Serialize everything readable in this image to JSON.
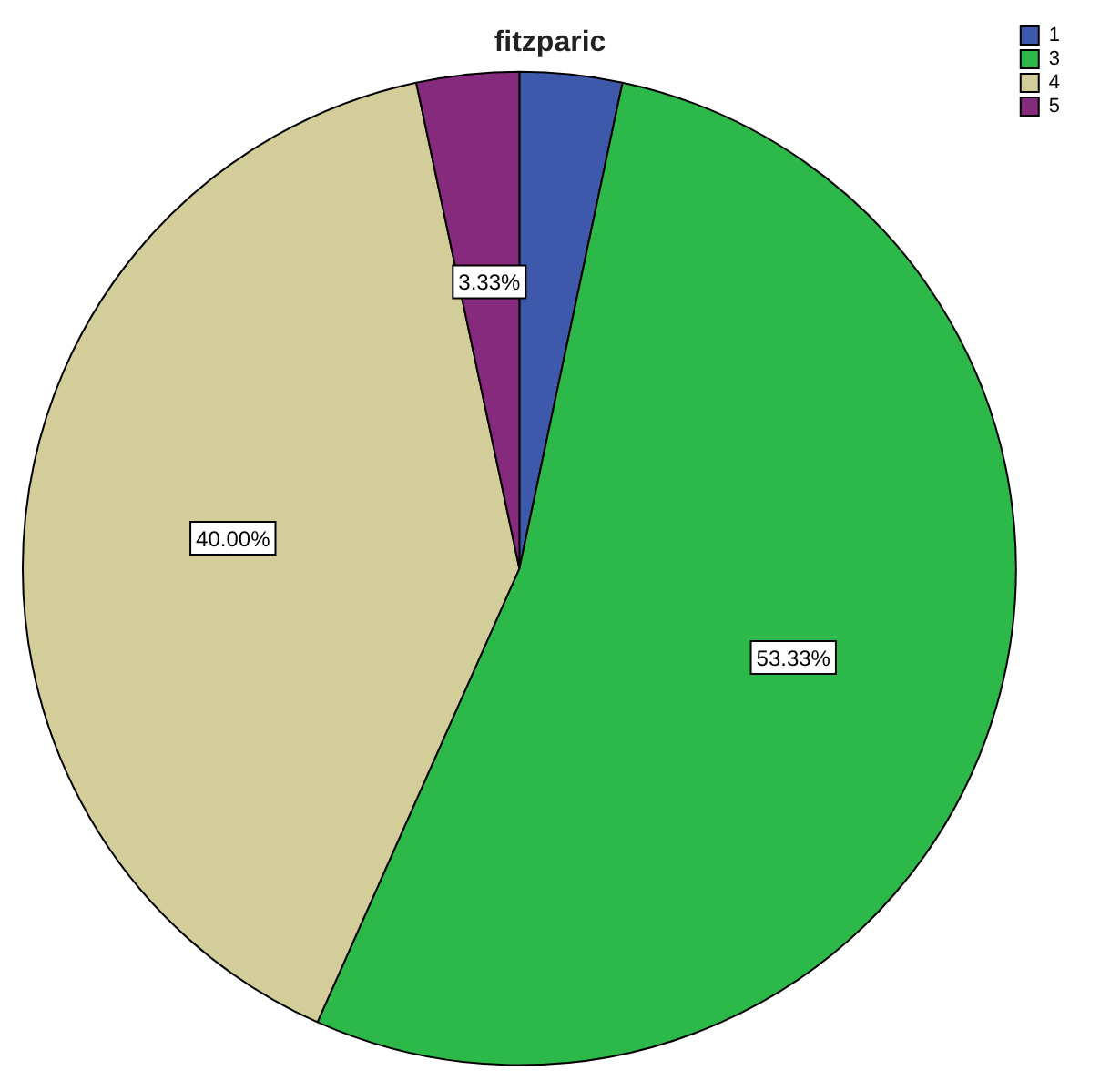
{
  "chart_data": {
    "type": "pie",
    "title": "fitzparic",
    "categories": [
      "1",
      "3",
      "4",
      "5"
    ],
    "values": [
      3.33,
      53.33,
      40.0,
      3.33
    ],
    "colors": [
      "#3e58ac",
      "#2db84a",
      "#d3cd99",
      "#862a7d"
    ],
    "value_labels": [
      null,
      "53.33%",
      "40.00%",
      "3.33%"
    ],
    "legend": "top right"
  }
}
